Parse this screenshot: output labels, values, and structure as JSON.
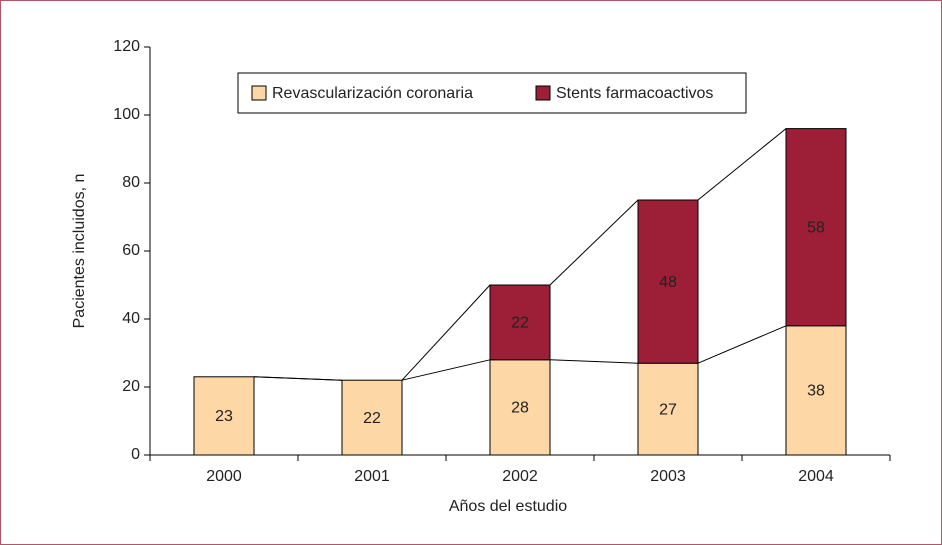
{
  "chart_data": {
    "type": "stacked-bar",
    "x_label": "Años del estudio",
    "y_label": "Pacientes incluidos, n",
    "categories": [
      "2000",
      "2001",
      "2002",
      "2003",
      "2004"
    ],
    "series": [
      {
        "name": "Revascularización coronaria",
        "color": "#fdd7a6",
        "values": [
          23,
          22,
          28,
          27,
          38
        ]
      },
      {
        "name": "Stents farmacoactivos",
        "color": "#9c1f37",
        "values": [
          null,
          null,
          22,
          48,
          58
        ]
      }
    ],
    "ylim": [
      0,
      120
    ],
    "yticks": [
      0,
      20,
      40,
      60,
      80,
      100,
      120
    ],
    "legend": "top",
    "series_lines": true
  }
}
